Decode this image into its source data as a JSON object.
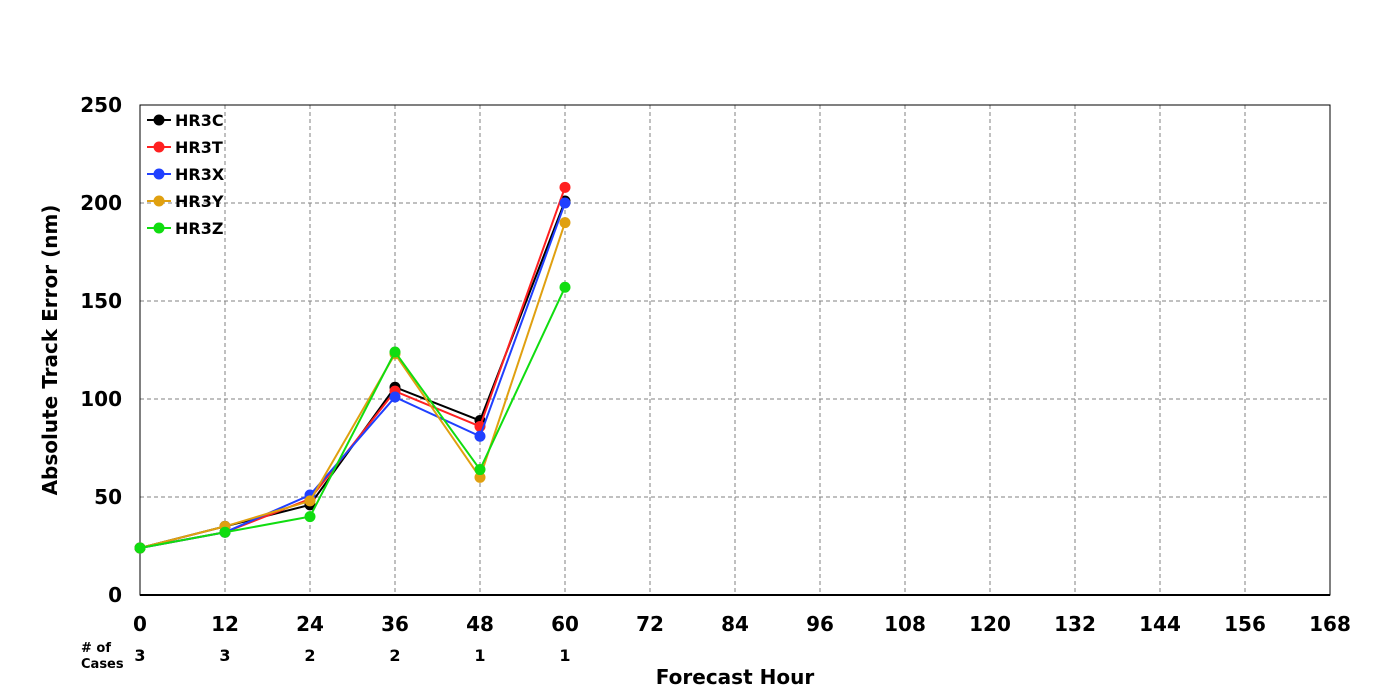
{
  "chart_data": {
    "type": "line",
    "title": "",
    "xlabel": "Forecast Hour",
    "ylabel": "Absolute Track Error (nm)",
    "xlim": [
      0,
      168
    ],
    "ylim": [
      0,
      250
    ],
    "xticks": [
      0,
      12,
      24,
      36,
      48,
      60,
      72,
      84,
      96,
      108,
      120,
      132,
      144,
      156,
      168
    ],
    "yticks": [
      0,
      50,
      100,
      150,
      200,
      250
    ],
    "grid": true,
    "legend_position": "top-left",
    "x": [
      0,
      12,
      24,
      36,
      48,
      60
    ],
    "series": [
      {
        "name": "HR3C",
        "color": "#000000",
        "values": [
          24,
          35,
          46,
          106,
          89,
          201
        ]
      },
      {
        "name": "HR3T",
        "color": "#ff2020",
        "values": [
          24,
          32,
          49,
          104,
          86,
          208
        ]
      },
      {
        "name": "HR3X",
        "color": "#2040ff",
        "values": [
          24,
          32,
          51,
          101,
          81,
          200
        ]
      },
      {
        "name": "HR3Y",
        "color": "#e0a010",
        "values": [
          24,
          35,
          48,
          123,
          60,
          190
        ]
      },
      {
        "name": "HR3Z",
        "color": "#10dd10",
        "values": [
          24,
          32,
          40,
          124,
          64,
          157
        ]
      }
    ],
    "cases_label": [
      "# of",
      "Cases"
    ],
    "cases": [
      3,
      3,
      2,
      2,
      1,
      1
    ]
  }
}
